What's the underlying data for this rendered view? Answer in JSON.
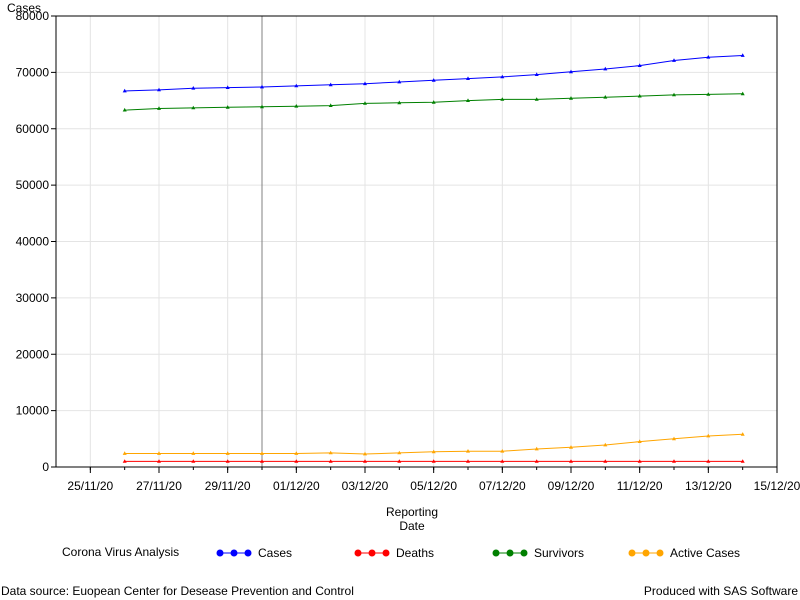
{
  "chart_data": {
    "type": "line",
    "ylabel": "Cases",
    "xlabel_line1": "Reporting",
    "xlabel_line2": "Date",
    "x_start": "2020-11-24",
    "x_end": "2020-12-15",
    "x_ticks": [
      "25/11/20",
      "27/11/20",
      "29/11/20",
      "01/12/20",
      "03/12/20",
      "05/12/20",
      "07/12/20",
      "09/12/20",
      "11/12/20",
      "13/12/20",
      "15/12/20"
    ],
    "y_ticks": [
      0,
      10000,
      20000,
      30000,
      40000,
      50000,
      60000,
      70000,
      80000
    ],
    "ylim": [
      0,
      80000
    ],
    "reference_line_date": "2020-11-30",
    "grid": true,
    "dates": [
      "2020-11-26",
      "2020-11-27",
      "2020-11-28",
      "2020-11-29",
      "2020-11-30",
      "2020-12-01",
      "2020-12-02",
      "2020-12-03",
      "2020-12-04",
      "2020-12-05",
      "2020-12-06",
      "2020-12-07",
      "2020-12-08",
      "2020-12-09",
      "2020-12-10",
      "2020-12-11",
      "2020-12-12",
      "2020-12-13",
      "2020-12-14"
    ],
    "series": [
      {
        "name": "Cases",
        "color": "#0000ff",
        "values": [
          66700,
          66900,
          67200,
          67300,
          67400,
          67600,
          67800,
          68000,
          68300,
          68600,
          68900,
          69200,
          69600,
          70100,
          70600,
          71200,
          72100,
          72700,
          73000
        ]
      },
      {
        "name": "Deaths",
        "color": "#ff0000",
        "values": [
          1000,
          1000,
          1000,
          1000,
          1000,
          1000,
          1000,
          1000,
          1000,
          1000,
          1000,
          1000,
          1000,
          1000,
          1000,
          1000,
          1000,
          1000,
          1000
        ]
      },
      {
        "name": "Survivors",
        "color": "#008000",
        "values": [
          63300,
          63600,
          63700,
          63800,
          63900,
          64000,
          64100,
          64500,
          64600,
          64700,
          65000,
          65200,
          65200,
          65400,
          65600,
          65800,
          66000,
          66100,
          66200
        ]
      },
      {
        "name": "Active Cases",
        "color": "#ffa500",
        "values": [
          2400,
          2400,
          2400,
          2400,
          2400,
          2400,
          2500,
          2300,
          2500,
          2700,
          2800,
          2800,
          3200,
          3500,
          3900,
          4500,
          5000,
          5500,
          5800
        ]
      }
    ]
  },
  "legend": {
    "title": "Corona Virus Analysis",
    "items": [
      "Cases",
      "Deaths",
      "Survivors",
      "Active Cases"
    ]
  },
  "footer": {
    "source": "Data source: Euopean Center for Desease Prevention and Control",
    "produced": "Produced with SAS Software"
  }
}
